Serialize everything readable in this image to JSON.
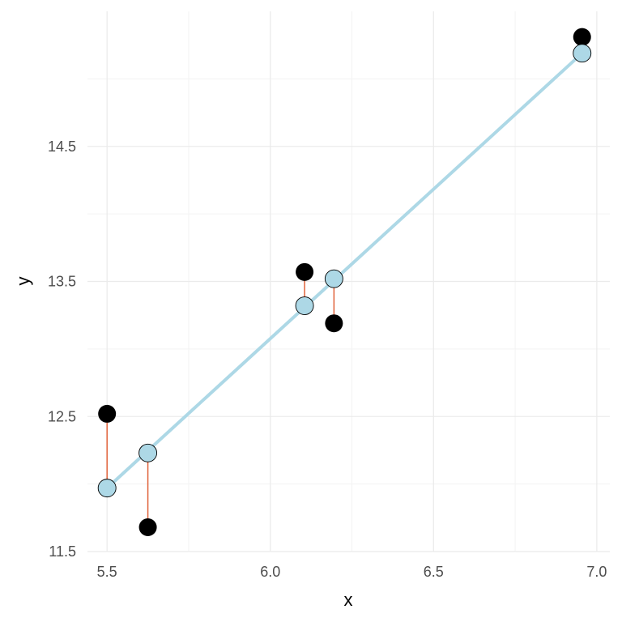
{
  "chart_data": {
    "type": "scatter",
    "title": "",
    "xlabel": "x",
    "ylabel": "y",
    "xlim": [
      5.44,
      7.04
    ],
    "ylim": [
      11.5,
      15.5
    ],
    "x_ticks": [
      5.5,
      6.0,
      6.5,
      7.0
    ],
    "x_tick_labels": [
      "5.5",
      "6.0",
      "6.5",
      "7.0"
    ],
    "y_ticks": [
      11.5,
      12.5,
      13.5,
      14.5
    ],
    "y_tick_labels": [
      "11.5",
      "12.5",
      "13.5",
      "14.5"
    ],
    "grid": true,
    "observed": {
      "x": [
        5.5,
        5.625,
        6.105,
        6.195,
        6.955
      ],
      "y": [
        12.52,
        11.68,
        13.57,
        13.19,
        15.31
      ]
    },
    "fitted": {
      "x": [
        5.5,
        5.625,
        6.105,
        6.195,
        6.955
      ],
      "y": [
        11.97,
        12.23,
        13.32,
        13.52,
        15.19
      ]
    },
    "fit_line": {
      "x": [
        5.5,
        6.955
      ],
      "y": [
        11.97,
        15.19
      ]
    },
    "colors": {
      "observed": "#000000",
      "fitted": "#add8e6",
      "fit_line": "#add8e6",
      "residual": "#e0623a",
      "grid_major": "#ebebeb",
      "grid_minor": "#f3f3f3"
    }
  }
}
